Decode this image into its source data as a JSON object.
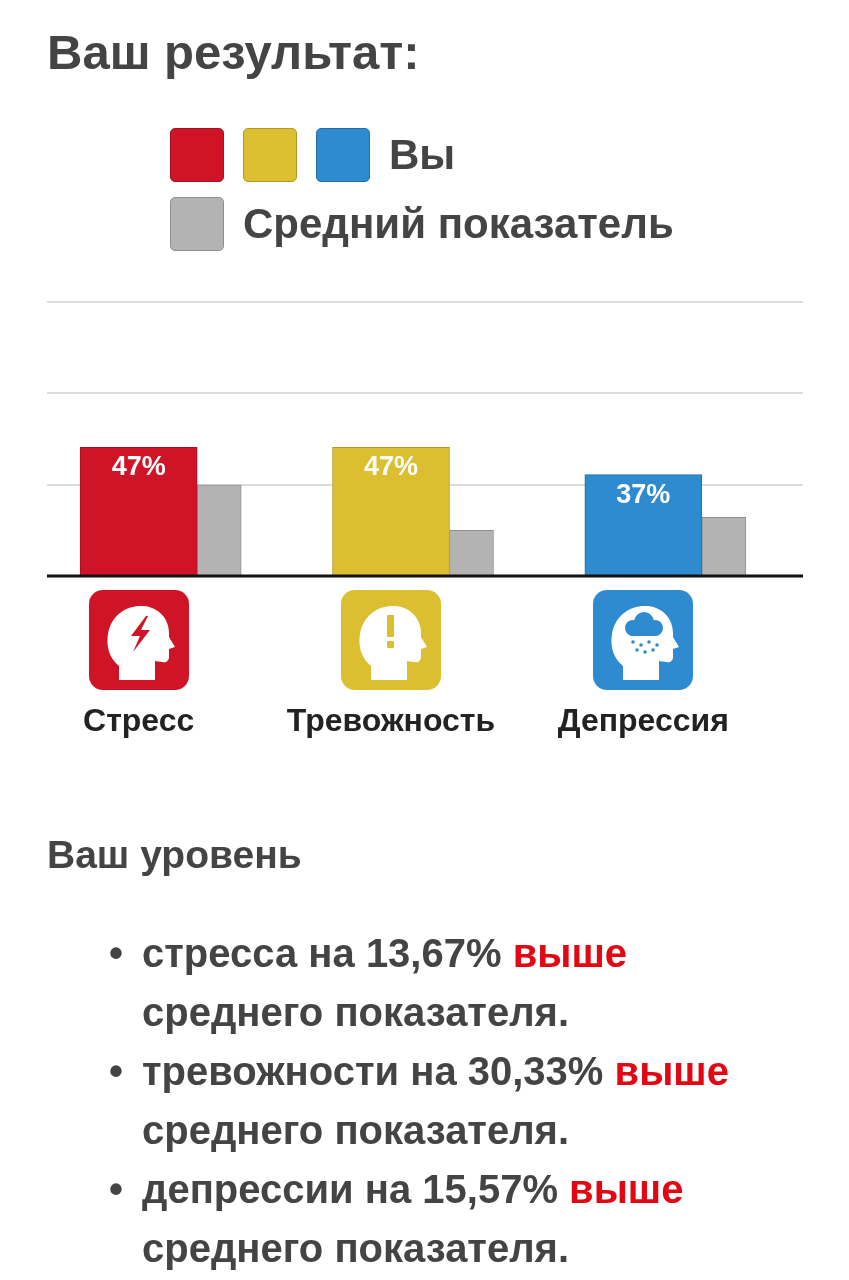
{
  "chart_data": {
    "type": "bar",
    "title": "Ваш результат:",
    "categories": [
      "Стресс",
      "Тревожность",
      "Депрессия"
    ],
    "series": [
      {
        "name": "Вы",
        "colors": [
          "#cf1428",
          "#dcbf30",
          "#2f8bd0"
        ],
        "values": [
          47,
          47,
          37
        ],
        "value_labels": [
          "47%",
          "47%",
          "37%"
        ]
      },
      {
        "name": "Средний показатель",
        "color": "#b3b3b3",
        "values": [
          33.3,
          16.7,
          21.4
        ]
      }
    ],
    "ylim": [
      0,
      100
    ],
    "yticks": [
      {
        "value": 0,
        "label": null
      },
      {
        "value": 33.3,
        "label": null
      },
      {
        "value": 66.7,
        "label": null
      },
      {
        "value": 100,
        "label": null
      }
    ],
    "grid": "y",
    "legend": "top",
    "tick_labels": "x",
    "annotations": [
      "Ваш уровень",
      "• стресса на 13,67% выше среднего показателя.",
      "• тревожности на 30,33% выше среднего показателя.",
      "• депрессии на 15,57% выше среднего показателя."
    ]
  }
}
